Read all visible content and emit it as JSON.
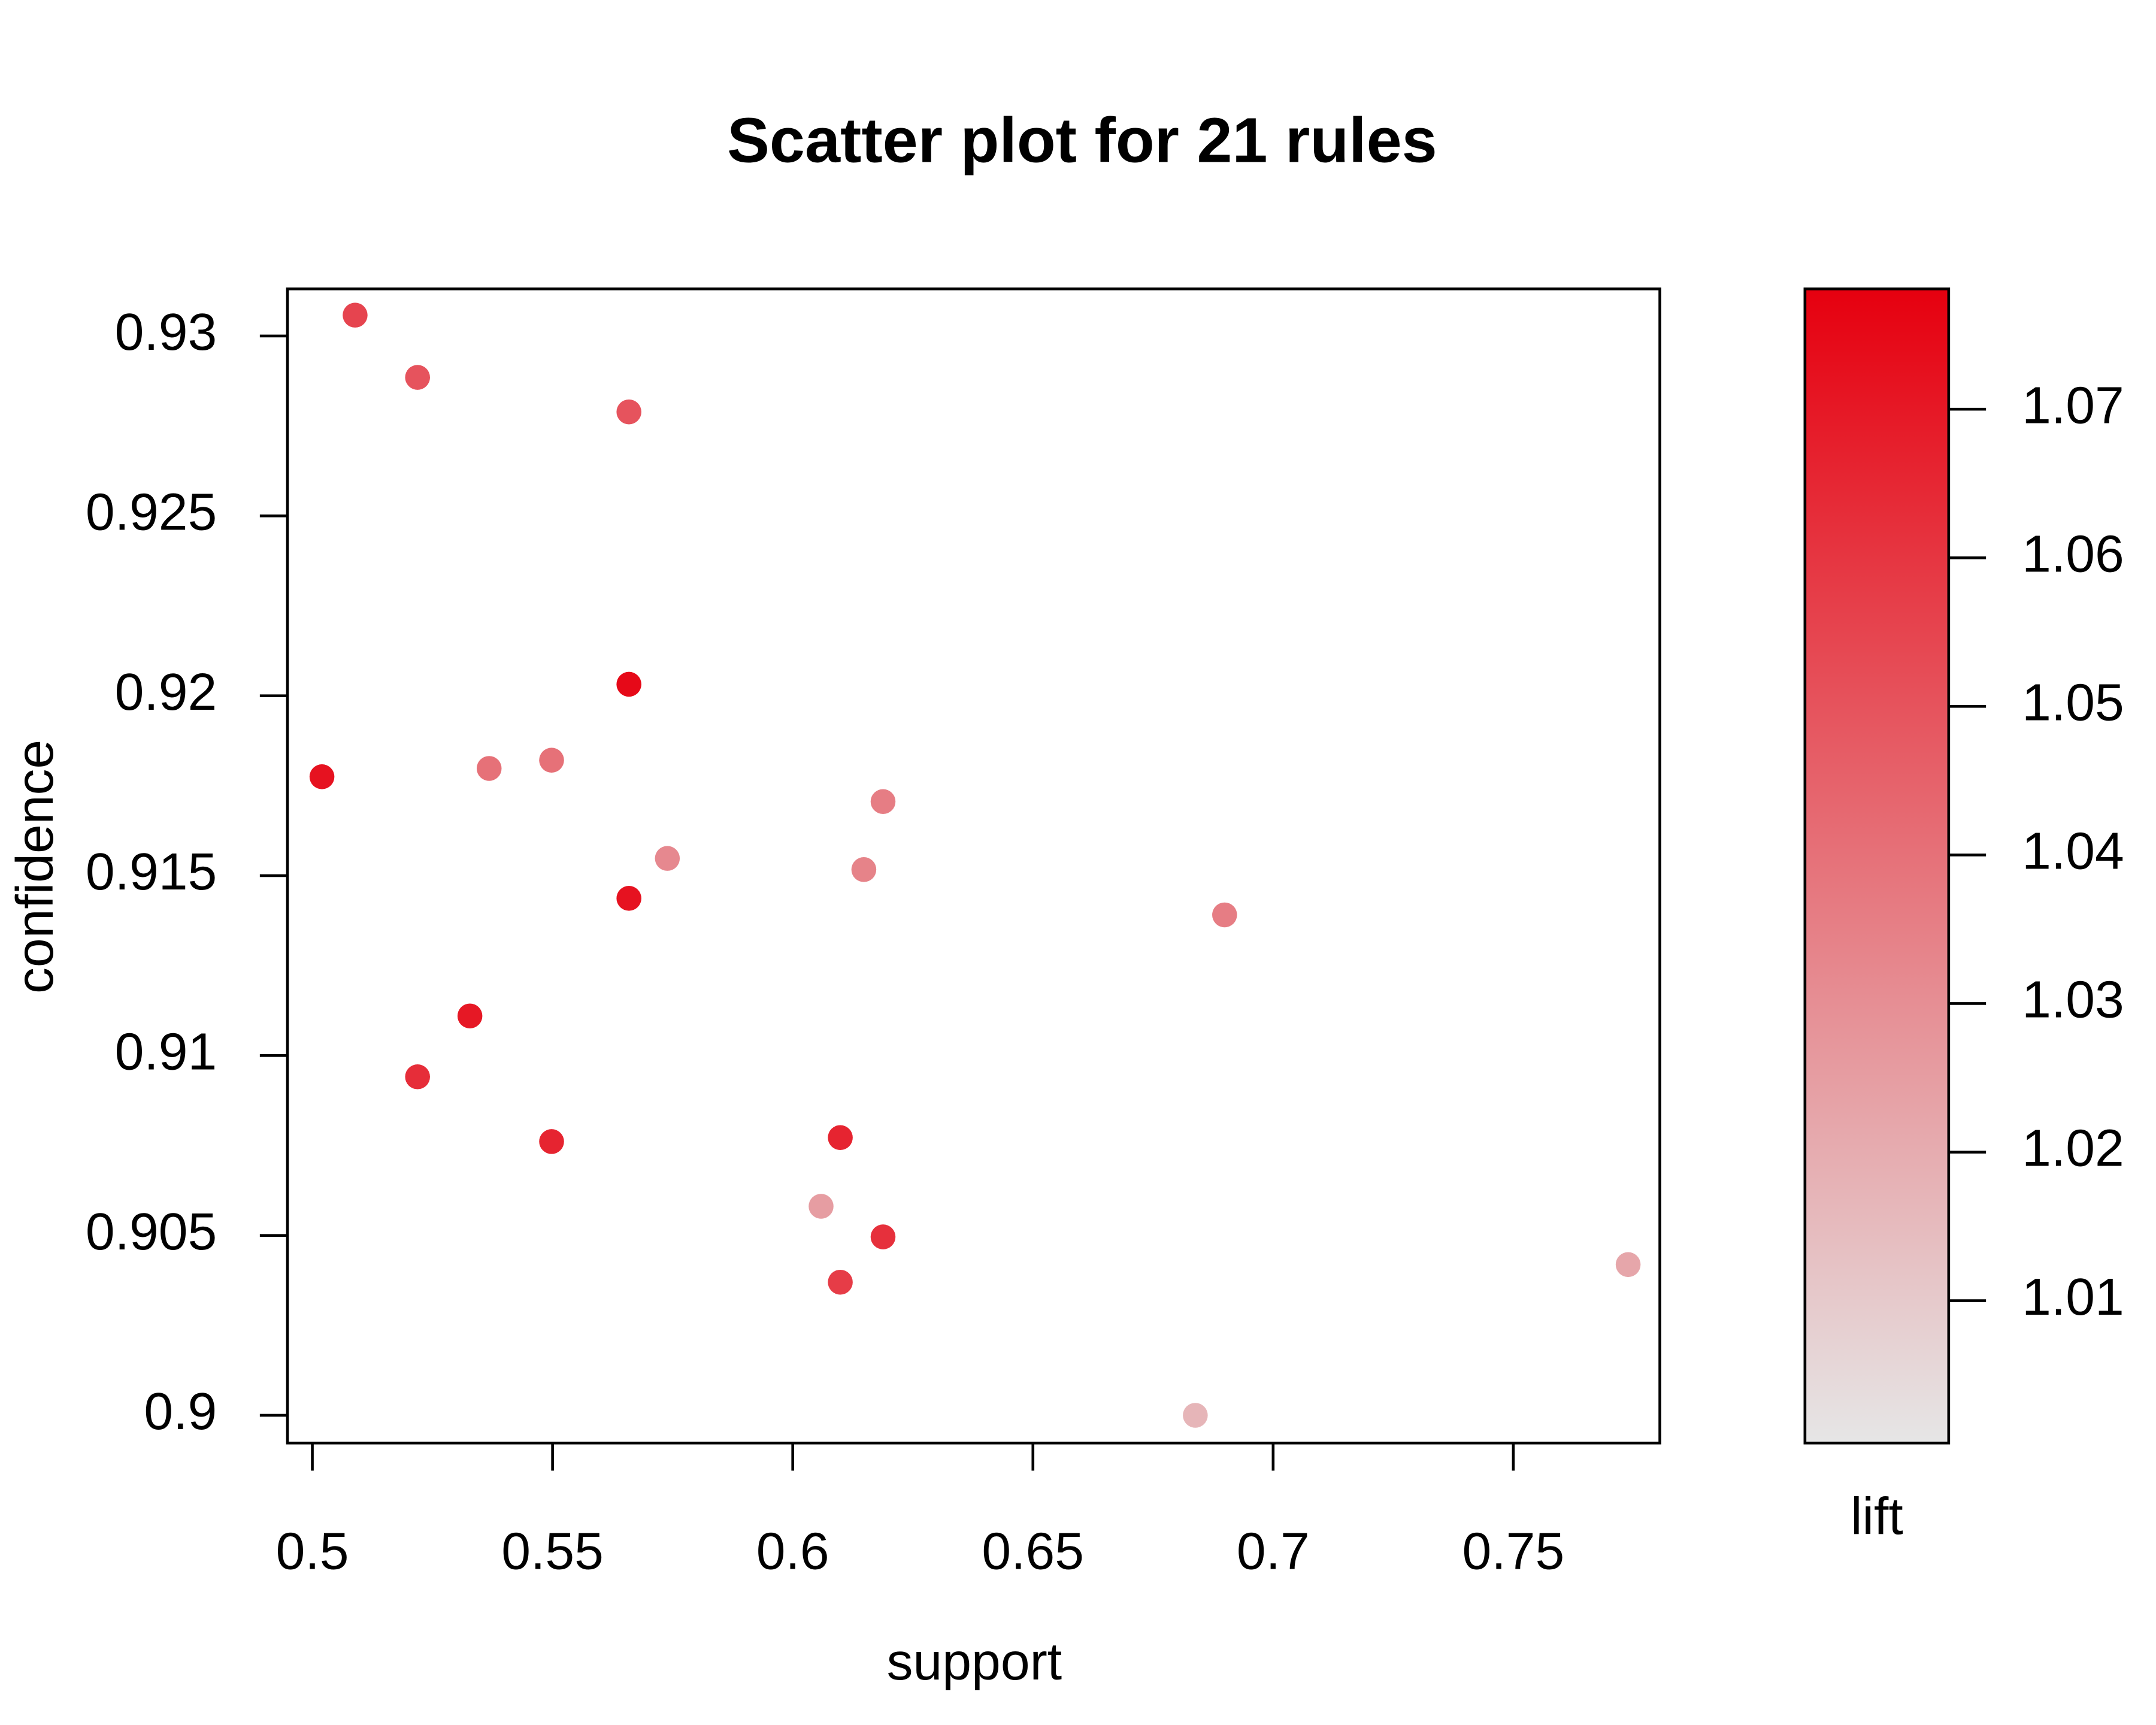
{
  "chart_data": {
    "type": "scatter",
    "title": "Scatter plot for 21 rules",
    "x_label": "support",
    "y_label": "confidence",
    "color_label": "lift",
    "xlim": [
      0.49482,
      0.7805
    ],
    "ylim": [
      0.89923,
      0.93131
    ],
    "xticks": [
      0.5,
      0.55,
      0.6,
      0.65,
      0.7,
      0.75
    ],
    "yticks": [
      0.9,
      0.905,
      0.91,
      0.915,
      0.92,
      0.925,
      0.93
    ],
    "colorlim": [
      1.00042,
      1.0781
    ],
    "colorticks": [
      1.01,
      1.02,
      1.03,
      1.04,
      1.05,
      1.06,
      1.07
    ],
    "colorscale": [
      "#e6e6e6",
      "#e6000f"
    ],
    "series": [
      {
        "x": [
          0.5089,
          0.5219,
          0.5659,
          0.5659,
          0.502,
          0.5368,
          0.5498,
          0.6188,
          0.5739,
          0.6148,
          0.5659,
          0.6899,
          0.5328,
          0.5219,
          0.5498,
          0.6099,
          0.6059,
          0.6188,
          0.6099,
          0.7739,
          0.6838
        ],
        "values": [
          0.93058,
          0.92885,
          0.92789,
          0.92032,
          0.91775,
          0.91798,
          0.91821,
          0.91706,
          0.91548,
          0.91517,
          0.91437,
          0.91391,
          0.9111,
          0.90941,
          0.90761,
          0.90772,
          0.90581,
          0.90496,
          0.9037,
          0.90419,
          0.9
        ],
        "lift": [
          1.055,
          1.05,
          1.05,
          1.075,
          1.072,
          1.04,
          1.04,
          1.036,
          1.032,
          1.034,
          1.072,
          1.036,
          1.07,
          1.063,
          1.066,
          1.066,
          1.025,
          1.062,
          1.058,
          1.022,
          1.017
        ]
      }
    ]
  }
}
